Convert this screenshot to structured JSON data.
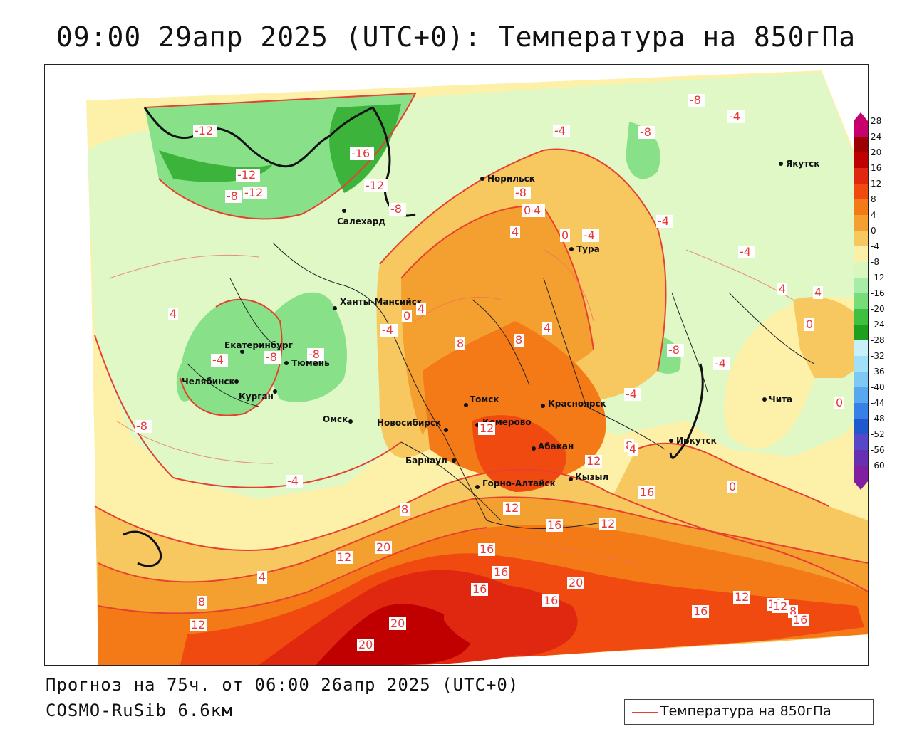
{
  "title": "09:00 29апр 2025 (UTC+0): Температура на 850гПа",
  "footer": {
    "forecast": "Прогноз на 75ч. от 06:00 26апр 2025 (UTC+0)",
    "model": "COSMO-RuSib 6.6км"
  },
  "legend": {
    "label": "Температура на 850гПа",
    "line_color": "#e84030"
  },
  "colorbar": {
    "ticks": [
      "28",
      "24",
      "20",
      "16",
      "12",
      "8",
      "4",
      "0",
      "-4",
      "-8",
      "-12",
      "-16",
      "-20",
      "-24",
      "-28",
      "-32",
      "-36",
      "-40",
      "-44",
      "-48",
      "-52",
      "-56",
      "-60"
    ],
    "colors": [
      "#c8006e",
      "#9c0000",
      "#c00000",
      "#e02810",
      "#f04a10",
      "#f47a18",
      "#f4a030",
      "#f8c860",
      "#fcf0a8",
      "#d8f8c0",
      "#a8ecaa",
      "#78dc78",
      "#40c040",
      "#1ea01e",
      "#c8f0f8",
      "#a0e0f8",
      "#80c8f4",
      "#58a8f0",
      "#3880e8",
      "#2058d0",
      "#5848c8",
      "#6830b0",
      "#8020a0"
    ]
  },
  "cities": [
    {
      "name": "Якутск"
    },
    {
      "name": "Норильск"
    },
    {
      "name": "Салехард"
    },
    {
      "name": "Тура"
    },
    {
      "name": "Ханты-Мансийск"
    },
    {
      "name": "Екатеринбург"
    },
    {
      "name": "Тюмень"
    },
    {
      "name": "Челябинск"
    },
    {
      "name": "Курган"
    },
    {
      "name": "Омск"
    },
    {
      "name": "Новосибирск"
    },
    {
      "name": "Томск"
    },
    {
      "name": "Кемерово"
    },
    {
      "name": "Красноярск"
    },
    {
      "name": "Абакан"
    },
    {
      "name": "Барнаул"
    },
    {
      "name": "Горно-Алтайск"
    },
    {
      "name": "Кызыл"
    },
    {
      "name": "Иркутск"
    },
    {
      "name": "Чита"
    }
  ],
  "contour_labels": [
    "-12",
    "-16",
    "-12",
    "-12",
    "-8",
    "-12",
    "-8",
    "-8",
    "-4",
    "-8",
    "-4",
    "-8",
    "-4",
    "-4",
    "0",
    "4",
    "-4",
    "0",
    "4",
    "-4",
    "0",
    "4",
    "0",
    "4",
    "-4",
    "-8",
    "-8",
    "-8",
    "-4",
    "-8",
    "-4",
    "-4",
    "-4",
    "0",
    "4",
    "8",
    "8",
    "12",
    "4",
    "12",
    "8",
    "4",
    "16",
    "12",
    "0",
    "20",
    "16",
    "16",
    "12",
    "16",
    "12",
    "16",
    "20",
    "16",
    "8",
    "12",
    "20",
    "20",
    "16",
    "12",
    "12",
    "16",
    "8",
    "12",
    "4",
    "8"
  ]
}
